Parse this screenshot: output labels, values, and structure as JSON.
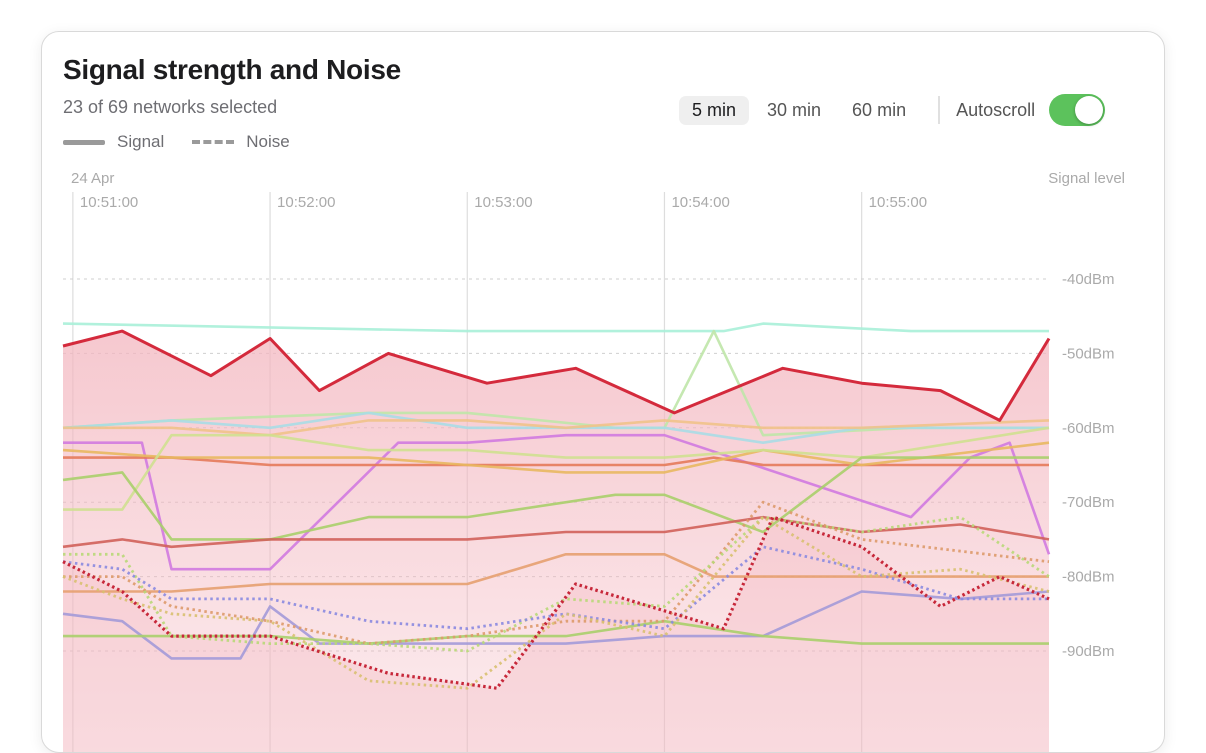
{
  "panel": {
    "title": "Signal strength and Noise",
    "subtitle": "23 of 69 networks selected",
    "legend": {
      "signal_label": "Signal",
      "noise_label": "Noise"
    },
    "time_ranges": [
      {
        "label": "5 min",
        "active": true
      },
      {
        "label": "30 min",
        "active": false
      },
      {
        "label": "60 min",
        "active": false
      }
    ],
    "autoscroll": {
      "label": "Autoscroll",
      "on": true
    }
  },
  "colors": {
    "toggle_on": "#5cc25c",
    "highlight_signal": "#d42a3c",
    "highlight_fill": "#f3b6bf"
  },
  "chart_data": {
    "type": "line",
    "date_label": "24 Apr",
    "y_axis_title": "Signal level",
    "x_ticks": [
      "10:51:00",
      "10:52:00",
      "10:53:00",
      "10:54:00",
      "10:55:00"
    ],
    "x_start": "10:50:57",
    "x_end": "10:55:57",
    "y_ticks": [
      "-40dBm",
      "-50dBm",
      "-60dBm",
      "-70dBm",
      "-80dBm",
      "-90dBm"
    ],
    "y_tick_values": [
      -40,
      -50,
      -60,
      -70,
      -80,
      -90
    ],
    "ylim": [
      -100,
      -30
    ],
    "grid": true,
    "highlighted": {
      "signal": {
        "name": "",
        "color": "#d42a3c",
        "x": [
          "10:50:57",
          "10:51:15",
          "10:51:42",
          "10:52:00",
          "10:52:15",
          "10:52:36",
          "10:53:06",
          "10:53:33",
          "10:54:03",
          "10:54:36",
          "10:55:00",
          "10:55:24",
          "10:55:42",
          "10:55:57"
        ],
        "y": [
          -49,
          -47,
          -53,
          -48,
          -55,
          -50,
          -54,
          -52,
          -58,
          -52,
          -54,
          -55,
          -59,
          -48
        ]
      },
      "noise": {
        "name": "",
        "color": "#c7283a",
        "x": [
          "10:50:57",
          "10:51:15",
          "10:51:30",
          "10:52:00",
          "10:52:36",
          "10:53:09",
          "10:53:33",
          "10:54:18",
          "10:54:33",
          "10:55:00",
          "10:55:24",
          "10:55:42",
          "10:55:57"
        ],
        "y": [
          -78,
          -82,
          -88,
          -88,
          -93,
          -95,
          -81,
          -87,
          -72,
          -76,
          -84,
          -80,
          -83
        ]
      }
    },
    "series": [
      {
        "name": "",
        "color": "#a8efd8",
        "style": "solid",
        "x": [
          "10:50:57",
          "10:53:00",
          "10:54:00",
          "10:54:18",
          "10:54:30",
          "10:55:15",
          "10:55:57"
        ],
        "y": [
          -46,
          -47,
          -47,
          -47,
          -46,
          -47,
          -47
        ]
      },
      {
        "name": "",
        "color": "#bfe6a8",
        "style": "solid",
        "x": [
          "10:50:57",
          "10:51:30",
          "10:52:30",
          "10:53:00",
          "10:53:45",
          "10:54:00",
          "10:54:15",
          "10:54:30",
          "10:55:15",
          "10:55:57"
        ],
        "y": [
          -60,
          -59,
          -58,
          -58,
          -60,
          -60,
          -47,
          -61,
          -60,
          -60
        ]
      },
      {
        "name": "",
        "color": "#a8dbe6",
        "style": "solid",
        "x": [
          "10:50:57",
          "10:51:30",
          "10:52:00",
          "10:52:30",
          "10:53:00",
          "10:53:30",
          "10:54:00",
          "10:54:30",
          "10:55:00",
          "10:55:57"
        ],
        "y": [
          -60,
          -59,
          -60,
          -58,
          -60,
          -60,
          -60,
          -62,
          -60,
          -60
        ]
      },
      {
        "name": "",
        "color": "#efc28a",
        "style": "solid",
        "x": [
          "10:50:57",
          "10:51:30",
          "10:52:00",
          "10:52:30",
          "10:53:00",
          "10:53:30",
          "10:54:00",
          "10:54:30",
          "10:55:00",
          "10:55:57"
        ],
        "y": [
          -60,
          -60,
          -61,
          -59,
          -59,
          -60,
          -59,
          -60,
          -60,
          -59
        ]
      },
      {
        "name": "",
        "color": "#d07ae0",
        "style": "solid",
        "x": [
          "10:50:57",
          "10:51:12",
          "10:51:21",
          "10:51:30",
          "10:51:51",
          "10:52:00",
          "10:52:39",
          "10:53:00",
          "10:53:30",
          "10:53:54",
          "10:54:00",
          "10:55:15",
          "10:55:33",
          "10:55:45",
          "10:55:57"
        ],
        "y": [
          -62,
          -62,
          -62,
          -79,
          -79,
          -79,
          -62,
          -62,
          -61,
          -61,
          -61,
          -72,
          -64,
          -62,
          -77
        ]
      },
      {
        "name": "",
        "color": "#e47a5a",
        "style": "solid",
        "x": [
          "10:50:57",
          "10:51:30",
          "10:52:00",
          "10:53:00",
          "10:54:00",
          "10:54:15",
          "10:54:30",
          "10:55:00",
          "10:55:57"
        ],
        "y": [
          -64,
          -64,
          -65,
          -65,
          -65,
          -64,
          -65,
          -65,
          -65
        ]
      },
      {
        "name": "",
        "color": "#e8b860",
        "style": "solid",
        "x": [
          "10:50:57",
          "10:51:30",
          "10:52:00",
          "10:52:30",
          "10:53:00",
          "10:53:30",
          "10:54:00",
          "10:54:30",
          "10:55:00",
          "10:55:57"
        ],
        "y": [
          -63,
          -64,
          -64,
          -64,
          -65,
          -66,
          -66,
          -63,
          -65,
          -62
        ]
      },
      {
        "name": "",
        "color": "#cfe090",
        "style": "solid",
        "x": [
          "10:50:57",
          "10:51:15",
          "10:51:30",
          "10:52:00",
          "10:52:30",
          "10:53:00",
          "10:53:30",
          "10:54:00",
          "10:54:30",
          "10:55:00",
          "10:55:57"
        ],
        "y": [
          -71,
          -71,
          -61,
          -61,
          -63,
          -63,
          -64,
          -64,
          -63,
          -64,
          -60
        ]
      },
      {
        "name": "",
        "color": "#a9cf6a",
        "style": "solid",
        "x": [
          "10:50:57",
          "10:51:15",
          "10:51:30",
          "10:52:00",
          "10:52:30",
          "10:53:00",
          "10:53:45",
          "10:54:00",
          "10:54:30",
          "10:55:00",
          "10:55:57"
        ],
        "y": [
          -67,
          -66,
          -75,
          -75,
          -72,
          -72,
          -69,
          -69,
          -74,
          -64,
          -64
        ]
      },
      {
        "name": "",
        "color": "#d0605a",
        "style": "solid",
        "x": [
          "10:50:57",
          "10:51:15",
          "10:51:30",
          "10:52:00",
          "10:52:30",
          "10:53:00",
          "10:53:30",
          "10:54:00",
          "10:54:30",
          "10:55:00",
          "10:55:30",
          "10:55:57"
        ],
        "y": [
          -76,
          -75,
          -76,
          -75,
          -75,
          -75,
          -74,
          -74,
          -72,
          -74,
          -73,
          -75
        ]
      },
      {
        "name": "",
        "color": "#e6a070",
        "style": "solid",
        "x": [
          "10:50:57",
          "10:51:30",
          "10:52:00",
          "10:52:30",
          "10:53:00",
          "10:53:15",
          "10:53:30",
          "10:54:00",
          "10:54:15",
          "10:54:30",
          "10:54:45",
          "10:55:57"
        ],
        "y": [
          -82,
          -82,
          -81,
          -81,
          -81,
          -79,
          -77,
          -77,
          -80,
          -80,
          -80,
          -80
        ]
      },
      {
        "name": "",
        "color": "#a39ad8",
        "style": "solid",
        "x": [
          "10:50:57",
          "10:51:15",
          "10:51:30",
          "10:51:51",
          "10:52:00",
          "10:52:15",
          "10:52:30",
          "10:52:45",
          "10:53:00",
          "10:53:30",
          "10:54:00",
          "10:54:30",
          "10:55:00",
          "10:55:30",
          "10:55:57"
        ],
        "y": [
          -85,
          -86,
          -91,
          -91,
          -84,
          -89,
          -89,
          -89,
          -89,
          -89,
          -88,
          -88,
          -82,
          -83,
          -82
        ]
      },
      {
        "name": "",
        "color": "#a9cf6a",
        "style": "solid",
        "x": [
          "10:50:57",
          "10:51:30",
          "10:52:00",
          "10:52:30",
          "10:53:00",
          "10:53:30",
          "10:54:00",
          "10:54:30",
          "10:55:00",
          "10:55:30",
          "10:55:57"
        ],
        "y": [
          -88,
          -88,
          -88,
          -89,
          -88,
          -88,
          -86,
          -88,
          -89,
          -89,
          -89
        ]
      },
      {
        "name": "",
        "color": "#dd9a6a",
        "style": "dotted",
        "x": [
          "10:50:57",
          "10:51:15",
          "10:51:30",
          "10:52:00",
          "10:52:30",
          "10:53:00",
          "10:53:30",
          "10:54:00",
          "10:54:30",
          "10:55:00",
          "10:55:57"
        ],
        "y": [
          -80,
          -80,
          -84,
          -86,
          -89,
          -88,
          -86,
          -86,
          -70,
          -75,
          -78
        ]
      },
      {
        "name": "",
        "color": "#b8d878",
        "style": "dotted",
        "x": [
          "10:50:57",
          "10:51:15",
          "10:51:30",
          "10:52:00",
          "10:52:30",
          "10:53:00",
          "10:53:30",
          "10:54:00",
          "10:54:30",
          "10:55:00",
          "10:55:30",
          "10:55:57"
        ],
        "y": [
          -77,
          -77,
          -88,
          -89,
          -89,
          -90,
          -83,
          -84,
          -72,
          -74,
          -72,
          -80
        ]
      },
      {
        "name": "",
        "color": "#8a8ae0",
        "style": "dotted",
        "x": [
          "10:50:57",
          "10:51:15",
          "10:51:30",
          "10:52:00",
          "10:52:30",
          "10:53:00",
          "10:53:30",
          "10:54:00",
          "10:54:30",
          "10:55:00",
          "10:55:30",
          "10:55:57"
        ],
        "y": [
          -78,
          -79,
          -83,
          -83,
          -86,
          -87,
          -85,
          -87,
          -76,
          -79,
          -83,
          -83
        ]
      },
      {
        "name": "",
        "color": "#d8c070",
        "style": "dotted",
        "x": [
          "10:50:57",
          "10:51:15",
          "10:51:30",
          "10:52:00",
          "10:52:30",
          "10:53:00",
          "10:53:30",
          "10:54:00",
          "10:54:30",
          "10:55:00",
          "10:55:30",
          "10:55:57"
        ],
        "y": [
          -80,
          -83,
          -85,
          -86,
          -94,
          -95,
          -85,
          -88,
          -72,
          -80,
          -79,
          -82
        ]
      }
    ]
  }
}
